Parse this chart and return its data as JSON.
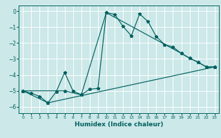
{
  "xlabel": "Humidex (Indice chaleur)",
  "xlim": [
    -0.5,
    23.5
  ],
  "ylim": [
    -6.4,
    0.35
  ],
  "xticks": [
    0,
    1,
    2,
    3,
    4,
    5,
    6,
    7,
    8,
    9,
    10,
    11,
    12,
    13,
    14,
    15,
    16,
    17,
    18,
    19,
    20,
    21,
    22,
    23
  ],
  "yticks": [
    0,
    -1,
    -2,
    -3,
    -4,
    -5,
    -6
  ],
  "bg_color": "#cce8e8",
  "line_color": "#006060",
  "grid_color": "#ffffff",
  "lines": [
    {
      "x": [
        0,
        1,
        2,
        3,
        4,
        5,
        6,
        7,
        8,
        9,
        10,
        11,
        12,
        13,
        14,
        15,
        16,
        17,
        18,
        19,
        20,
        21,
        22,
        23
      ],
      "y": [
        -5.0,
        -5.15,
        -5.35,
        -5.75,
        -5.05,
        -3.85,
        -5.0,
        -5.25,
        -4.9,
        -4.85,
        -0.1,
        -0.2,
        -0.95,
        -1.55,
        -0.18,
        -0.65,
        -1.6,
        -2.1,
        -2.25,
        -2.65,
        -2.95,
        -3.2,
        -3.5,
        -3.5
      ]
    },
    {
      "x": [
        0,
        5,
        7,
        10,
        19,
        20,
        21,
        22,
        23
      ],
      "y": [
        -5.0,
        -5.0,
        -5.25,
        -0.1,
        -2.65,
        -2.95,
        -3.2,
        -3.5,
        -3.5
      ]
    },
    {
      "x": [
        0,
        3,
        23
      ],
      "y": [
        -5.0,
        -5.75,
        -3.5
      ]
    }
  ]
}
